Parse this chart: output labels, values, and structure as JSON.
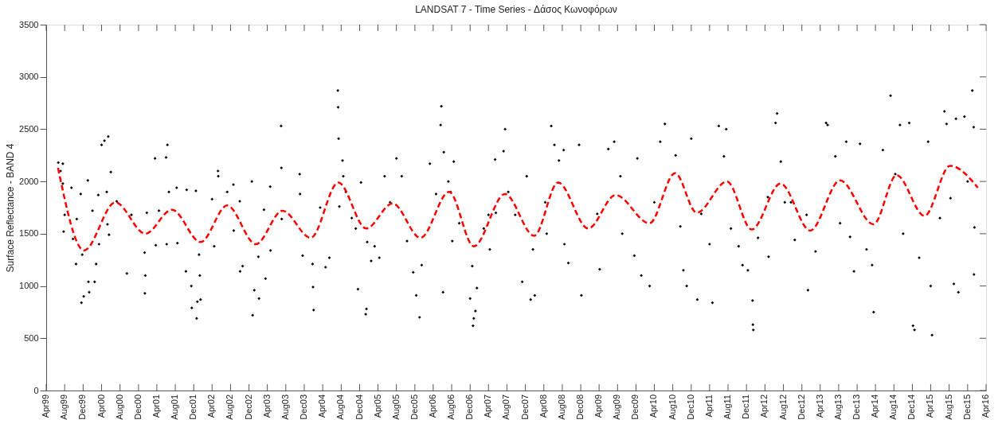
{
  "chart_data": {
    "type": "scatter",
    "title": "LANDSAT 7 - Time Series - Δάσος Κωνοφόρων",
    "ylabel": "Surface Reflectance - BAND 4",
    "xlim": [
      "1999-04",
      "2016-04"
    ],
    "xticks": [
      {
        "value": "1999-04",
        "label": "Apr99"
      },
      {
        "value": "1999-08",
        "label": "Aug99"
      },
      {
        "value": "1999-12",
        "label": "Dec99"
      },
      {
        "value": "2000-04",
        "label": "Apr00"
      },
      {
        "value": "2000-08",
        "label": "Aug00"
      },
      {
        "value": "2000-12",
        "label": "Dec00"
      },
      {
        "value": "2001-04",
        "label": "Apr01"
      },
      {
        "value": "2001-08",
        "label": "Aug01"
      },
      {
        "value": "2001-12",
        "label": "Dec01"
      },
      {
        "value": "2002-04",
        "label": "Apr02"
      },
      {
        "value": "2002-08",
        "label": "Aug02"
      },
      {
        "value": "2002-12",
        "label": "Dec02"
      },
      {
        "value": "2003-04",
        "label": "Apr03"
      },
      {
        "value": "2003-08",
        "label": "Aug03"
      },
      {
        "value": "2003-12",
        "label": "Dec03"
      },
      {
        "value": "2004-04",
        "label": "Apr04"
      },
      {
        "value": "2004-08",
        "label": "Aug04"
      },
      {
        "value": "2004-12",
        "label": "Dec04"
      },
      {
        "value": "2005-04",
        "label": "Apr05"
      },
      {
        "value": "2005-08",
        "label": "Aug05"
      },
      {
        "value": "2005-12",
        "label": "Dec05"
      },
      {
        "value": "2006-04",
        "label": "Apr06"
      },
      {
        "value": "2006-08",
        "label": "Aug06"
      },
      {
        "value": "2006-12",
        "label": "Dec06"
      },
      {
        "value": "2007-04",
        "label": "Apr07"
      },
      {
        "value": "2007-08",
        "label": "Aug07"
      },
      {
        "value": "2007-12",
        "label": "Dec07"
      },
      {
        "value": "2008-04",
        "label": "Apr08"
      },
      {
        "value": "2008-08",
        "label": "Aug08"
      },
      {
        "value": "2008-12",
        "label": "Dec08"
      },
      {
        "value": "2009-04",
        "label": "Apr09"
      },
      {
        "value": "2009-08",
        "label": "Aug09"
      },
      {
        "value": "2009-12",
        "label": "Dec09"
      },
      {
        "value": "2010-04",
        "label": "Apr10"
      },
      {
        "value": "2010-08",
        "label": "Aug10"
      },
      {
        "value": "2010-12",
        "label": "Dec10"
      },
      {
        "value": "2011-04",
        "label": "Apr11"
      },
      {
        "value": "2011-08",
        "label": "Aug11"
      },
      {
        "value": "2011-12",
        "label": "Dec11"
      },
      {
        "value": "2012-04",
        "label": "Apr12"
      },
      {
        "value": "2012-08",
        "label": "Aug12"
      },
      {
        "value": "2012-12",
        "label": "Dec12"
      },
      {
        "value": "2013-04",
        "label": "Apr13"
      },
      {
        "value": "2013-08",
        "label": "Aug13"
      },
      {
        "value": "2013-12",
        "label": "Dec13"
      },
      {
        "value": "2014-04",
        "label": "Apr14"
      },
      {
        "value": "2014-08",
        "label": "Aug14"
      },
      {
        "value": "2014-12",
        "label": "Dec14"
      },
      {
        "value": "2015-04",
        "label": "Apr15"
      },
      {
        "value": "2015-08",
        "label": "Aug15"
      },
      {
        "value": "2015-12",
        "label": "Dec15"
      },
      {
        "value": "2016-04",
        "label": "Apr16"
      }
    ],
    "ylim": [
      0,
      3500
    ],
    "yticks": [
      0,
      500,
      1000,
      1500,
      2000,
      2500,
      3000,
      3500
    ],
    "grid": false,
    "marker": "diamond",
    "series": [
      {
        "color": "#000000",
        "x": [
          "1999-06-20",
          "1999-07-05",
          "1999-07-20",
          "1999-07-25",
          "1999-07-20",
          "1999-08-01",
          "1999-09-15",
          "1999-09-25",
          "1999-10-15",
          "1999-10-20",
          "1999-11-15",
          "1999-11-20",
          "1999-11-25",
          "1999-12-05",
          "2000-01-01",
          "2000-01-05",
          "2000-01-10",
          "2000-02-01",
          "2000-02-15",
          "2000-02-25",
          "2000-03-10",
          "2000-03-15",
          "2000-04-01",
          "2000-04-20",
          "2000-05-05",
          "2000-05-15",
          "2000-05-20",
          "2000-05-10",
          "2000-06-01",
          "2000-07-10",
          "2000-09-15",
          "2000-10-15",
          "2001-01-10",
          "2001-01-12",
          "2001-01-15",
          "2001-01-25",
          "2001-03-20",
          "2001-03-25",
          "2001-04-15",
          "2001-06-01",
          "2001-06-10",
          "2001-06-05",
          "2001-06-20",
          "2001-08-10",
          "2001-08-15",
          "2001-10-10",
          "2001-10-15",
          "2001-11-15",
          "2001-11-18",
          "2001-12-15",
          "2001-12-20",
          "2001-12-25",
          "2002-01-10",
          "2002-01-15",
          "2002-01-05",
          "2002-04-01",
          "2002-04-15",
          "2002-05-10",
          "2002-05-12",
          "2002-07-10",
          "2002-08-20",
          "2002-08-22",
          "2002-10-01",
          "2002-10-03",
          "2002-10-20",
          "2002-12-20",
          "2002-12-25",
          "2003-01-05",
          "2003-02-01",
          "2003-02-05",
          "2003-03-10",
          "2003-03-20",
          "2003-04-20",
          "2003-04-22",
          "2003-07-01",
          "2003-07-03",
          "2003-07-05",
          "2003-11-01",
          "2003-11-03",
          "2003-11-20",
          "2004-01-25",
          "2004-01-28",
          "2004-02-01",
          "2004-03-15",
          "2004-04-20",
          "2004-05-15",
          "2004-07-10",
          "2004-07-12",
          "2004-07-15",
          "2004-08-10",
          "2004-08-15",
          "2004-09-01",
          "2004-07-20",
          "2004-10-10",
          "2004-11-05",
          "2004-11-20",
          "2004-12-10",
          "2005-01-10",
          "2005-01-15",
          "2005-01-20",
          "2005-02-15",
          "2005-03-10",
          "2005-04-10",
          "2005-05-15",
          "2005-06-20",
          "2005-08-01",
          "2005-09-05",
          "2005-10-10",
          "2005-11-20",
          "2005-12-10",
          "2006-01-01",
          "2006-01-15",
          "2006-03-10",
          "2006-04-20",
          "2006-05-20",
          "2006-05-25",
          "2006-06-10",
          "2006-07-10",
          "2006-07-25",
          "2006-08-05",
          "2006-06-05",
          "2006-08-15",
          "2006-09-20",
          "2006-12-01",
          "2006-12-15",
          "2006-12-20",
          "2006-12-25",
          "2007-01-05",
          "2007-01-15",
          "2007-03-01",
          "2007-04-01",
          "2007-04-10",
          "2007-05-15",
          "2007-05-20",
          "2007-07-10",
          "2007-07-20",
          "2007-08-10",
          "2007-09-25",
          "2007-11-10",
          "2007-12-10",
          "2008-01-05",
          "2008-01-20",
          "2008-02-01",
          "2008-04-10",
          "2008-04-20",
          "2008-05-20",
          "2008-06-10",
          "2008-07-10",
          "2008-08-10",
          "2008-08-15",
          "2008-09-10",
          "2008-11-20",
          "2008-12-05",
          "2009-03-20",
          "2009-04-05",
          "2009-06-01",
          "2009-07-10",
          "2009-08-20",
          "2009-09-01",
          "2009-11-20",
          "2009-12-10",
          "2010-01-05",
          "2010-03-01",
          "2010-04-01",
          "2010-05-10",
          "2010-06-10",
          "2010-08-20",
          "2010-09-20",
          "2010-10-10",
          "2010-11-01",
          "2010-12-01",
          "2011-01-10",
          "2011-02-05",
          "2011-04-01",
          "2011-04-20",
          "2011-06-01",
          "2011-07-05",
          "2011-07-20",
          "2011-08-20",
          "2011-10-10",
          "2011-11-05",
          "2011-12-10",
          "2012-01-10",
          "2012-01-12",
          "2012-01-15",
          "2012-02-15",
          "2012-04-20",
          "2012-04-25",
          "2012-06-10",
          "2012-06-20",
          "2012-07-15",
          "2012-08-10",
          "2012-09-20",
          "2012-10-15",
          "2013-01-01",
          "2013-01-10",
          "2013-03-01",
          "2013-05-10",
          "2013-05-20",
          "2013-07-10",
          "2013-08-10",
          "2013-09-20",
          "2013-10-15",
          "2013-11-10",
          "2013-12-20",
          "2014-02-01",
          "2014-03-10",
          "2014-03-20",
          "2014-05-20",
          "2014-07-10",
          "2014-08-10",
          "2014-09-10",
          "2014-10-01",
          "2014-11-10",
          "2014-12-05",
          "2014-12-15",
          "2015-01-15",
          "2015-03-15",
          "2015-04-01",
          "2015-04-10",
          "2015-06-01",
          "2015-07-01",
          "2015-07-15",
          "2015-08-10",
          "2015-09-01",
          "2015-09-15",
          "2015-10-01",
          "2015-11-10",
          "2015-12-01",
          "2016-01-01",
          "2016-01-10",
          "2016-01-12",
          "2016-01-15"
        ],
        "values": [
          2180,
          2100,
          2170,
          1520,
          1980,
          1680,
          1940,
          1450,
          1210,
          1640,
          1880,
          840,
          1300,
          900,
          2010,
          1040,
          940,
          1720,
          1040,
          1210,
          1870,
          1400,
          2350,
          2390,
          1900,
          2430,
          1490,
          1590,
          2090,
          1810,
          1120,
          1680,
          1320,
          930,
          1100,
          1700,
          2220,
          1390,
          1720,
          2230,
          2350,
          1400,
          1900,
          1940,
          1410,
          1140,
          1920,
          1000,
          790,
          1910,
          690,
          850,
          1100,
          870,
          1300,
          1830,
          1380,
          2100,
          2050,
          1900,
          1970,
          1530,
          1810,
          1140,
          1190,
          2000,
          720,
          960,
          1280,
          880,
          1730,
          1070,
          1950,
          1340,
          2530,
          2130,
          1640,
          2070,
          1880,
          1290,
          1210,
          990,
          770,
          1750,
          1180,
          1270,
          2870,
          2710,
          2410,
          2200,
          2050,
          1900,
          1760,
          1650,
          1550,
          970,
          1990,
          730,
          780,
          1420,
          1240,
          1380,
          1270,
          2050,
          1800,
          2220,
          2050,
          1430,
          1130,
          910,
          700,
          1200,
          2170,
          1880,
          2540,
          2720,
          2280,
          2000,
          1900,
          1430,
          940,
          2190,
          1600,
          880,
          1190,
          620,
          690,
          760,
          980,
          1550,
          1680,
          1350,
          2210,
          1700,
          2290,
          2500,
          1900,
          1680,
          1040,
          2050,
          870,
          1350,
          910,
          1800,
          1500,
          2530,
          2350,
          2200,
          2300,
          1400,
          1220,
          2350,
          910,
          1690,
          1160,
          2310,
          2380,
          2050,
          1500,
          1290,
          2220,
          1100,
          1000,
          1800,
          2380,
          2550,
          2250,
          1570,
          1150,
          1000,
          2410,
          870,
          1690,
          1400,
          840,
          2530,
          2240,
          2500,
          1550,
          1380,
          1200,
          1150,
          860,
          630,
          580,
          1460,
          1850,
          1280,
          2560,
          2650,
          2190,
          1800,
          1800,
          1440,
          1680,
          960,
          1330,
          2560,
          2540,
          2240,
          1600,
          2380,
          1470,
          1140,
          2360,
          1350,
          1200,
          750,
          2300,
          2820,
          2070,
          2540,
          1500,
          2560,
          620,
          580,
          1270,
          2380,
          1000,
          530,
          1650,
          2670,
          2550,
          1840,
          1020,
          2600,
          940,
          2620,
          2000,
          2870,
          2520,
          1110,
          1560
        ]
      },
      {
        "type": "line",
        "color": "#ff0000",
        "line_style": "dashed",
        "marker": "none",
        "x": [
          "1999-06-18",
          "1999-12-07",
          "2000-07-01",
          "2001-01-15",
          "2001-07-10",
          "2002-01-15",
          "2002-07-10",
          "2003-01-15",
          "2003-07-10",
          "2004-01-13",
          "2004-07-13",
          "2005-01-13",
          "2005-07-07",
          "2006-01-07",
          "2006-07-15",
          "2006-12-25",
          "2007-07-19",
          "2008-01-28",
          "2008-07-04",
          "2009-01-19",
          "2009-07-19",
          "2010-02-28",
          "2010-08-16",
          "2011-01-06",
          "2011-07-25",
          "2012-01-04",
          "2012-07-13",
          "2013-01-25",
          "2013-08-10",
          "2014-03-19",
          "2014-08-19",
          "2015-02-19",
          "2015-08-07",
          "2016-02-07"
        ],
        "values": [
          2130,
          1340,
          1800,
          1500,
          1730,
          1420,
          1770,
          1400,
          1720,
          1460,
          1990,
          1550,
          1790,
          1460,
          1900,
          1380,
          1880,
          1480,
          1990,
          1550,
          1870,
          1600,
          2080,
          1700,
          2000,
          1540,
          1980,
          1530,
          2010,
          1590,
          2060,
          1670,
          2150,
          1940
        ]
      }
    ]
  }
}
